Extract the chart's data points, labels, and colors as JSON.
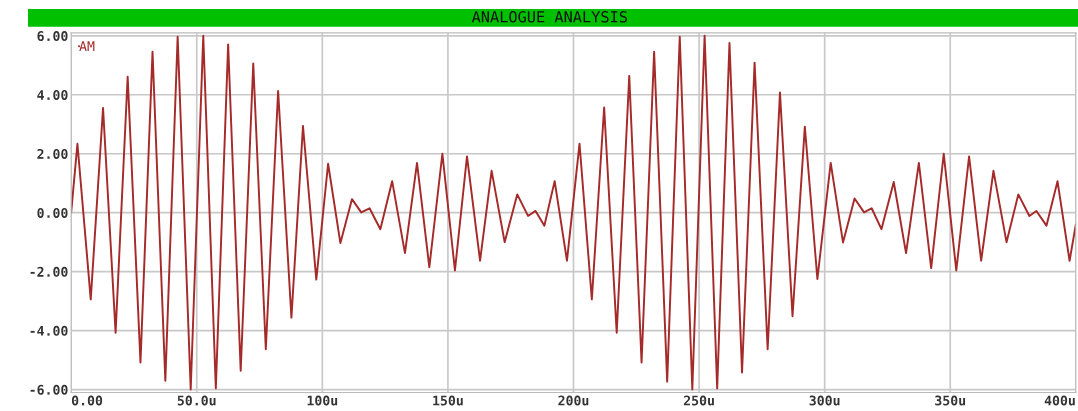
{
  "chart_data": {
    "type": "line",
    "title": "ANALOGUE ANALYSIS",
    "x": [
      0,
      2.5,
      7.8,
      12.7,
      17.7,
      22.5,
      27.6,
      32.4,
      37.5,
      42.4,
      47.6,
      52.6,
      57.6,
      62.5,
      67.5,
      72.5,
      77.5,
      82.4,
      87.7,
      92.3,
      97.6,
      102.3,
      107.2,
      111.8,
      115.5,
      118.8,
      123.1,
      127.8,
      132.9,
      137.7,
      142.6,
      147.8,
      152.8,
      157.6,
      162.8,
      167.4,
      172.6,
      177.6,
      181.9,
      184.9,
      188.4,
      192.5,
      197.4,
      202.4,
      207.3,
      212.2,
      217.2,
      222.2,
      227.1,
      232.1,
      237.3,
      242.3,
      247.3,
      252.2,
      257.2,
      262.1,
      267.1,
      272.1,
      277.3,
      282.2,
      287.2,
      292.1,
      297.1,
      302.4,
      307.3,
      311.9,
      315.7,
      318.7,
      322.6,
      327.5,
      332.4,
      337.5,
      342.4,
      347.4,
      352.4,
      357.5,
      362.3,
      367.2,
      372.4,
      377.1,
      381.5,
      384.3,
      388.3,
      392.7,
      397.5,
      400
    ],
    "series": [
      {
        "name": "AM",
        "color": "#a52a2a",
        "values": [
          0,
          2.34,
          -2.94,
          3.55,
          -4.07,
          4.61,
          -5.08,
          5.46,
          -5.7,
          5.97,
          -6.0,
          6.0,
          -5.96,
          5.71,
          -5.36,
          5.06,
          -4.63,
          4.13,
          -3.56,
          2.94,
          -2.27,
          1.66,
          -1.03,
          0.46,
          0.01,
          0.15,
          -0.56,
          1.07,
          -1.37,
          1.69,
          -1.85,
          2.0,
          -1.96,
          1.91,
          -1.63,
          1.42,
          -1.0,
          0.62,
          -0.11,
          0.06,
          -0.44,
          1.07,
          -1.63,
          2.34,
          -2.94,
          3.57,
          -4.07,
          4.64,
          -5.08,
          5.46,
          -5.73,
          5.97,
          -6.0,
          6.0,
          -5.96,
          5.76,
          -5.42,
          5.09,
          -4.63,
          4.08,
          -3.51,
          2.92,
          -2.25,
          1.69,
          -1.01,
          0.48,
          0.01,
          0.15,
          -0.56,
          1.04,
          -1.37,
          1.69,
          -1.88,
          2.0,
          -1.96,
          1.91,
          -1.63,
          1.42,
          -1.0,
          0.62,
          -0.11,
          0.06,
          -0.44,
          1.07,
          -1.63,
          -0.4
        ]
      }
    ],
    "xlim": [
      0,
      400
    ],
    "xticks": [
      {
        "value": 0,
        "label": "0.00"
      },
      {
        "value": 50,
        "label": "50.0u"
      },
      {
        "value": 100,
        "label": "100u"
      },
      {
        "value": 150,
        "label": "150u"
      },
      {
        "value": 200,
        "label": "200u"
      },
      {
        "value": 250,
        "label": "250u"
      },
      {
        "value": 300,
        "label": "300u"
      },
      {
        "value": 350,
        "label": "350u"
      },
      {
        "value": 400,
        "label": "400u"
      }
    ],
    "ylim": [
      -6.1,
      6.1
    ],
    "yticks": [
      {
        "value": 6,
        "label": "6.00"
      },
      {
        "value": 4,
        "label": "4.00"
      },
      {
        "value": 2,
        "label": "2.00"
      },
      {
        "value": 0,
        "label": "0.00"
      },
      {
        "value": -2,
        "label": "-2.00"
      },
      {
        "value": -4,
        "label": "-4.00"
      },
      {
        "value": -6,
        "label": "-6.00"
      }
    ],
    "grid": true,
    "legend": "top left",
    "line_style": "solid",
    "marker": "none"
  }
}
